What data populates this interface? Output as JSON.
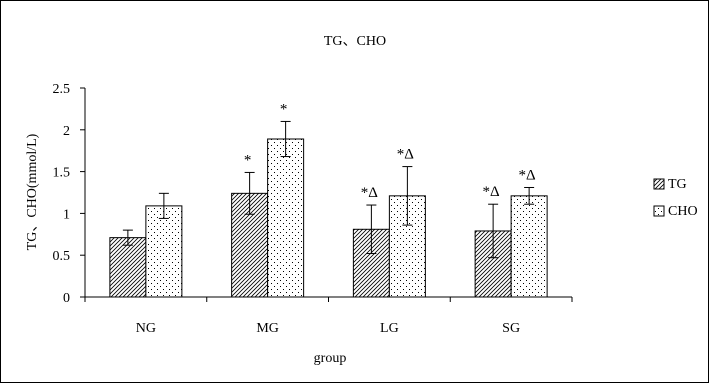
{
  "chart_data": {
    "type": "bar",
    "title": "TG、CHO",
    "xlabel": "group",
    "ylabel": "TG、CHO(mmol/L)",
    "categories": [
      "NG",
      "MG",
      "LG",
      "SG"
    ],
    "ylim": [
      0,
      2.5
    ],
    "yticks": [
      "0",
      "0.5",
      "1",
      "1.5",
      "2",
      "2.5"
    ],
    "grid": false,
    "legend_position": "right",
    "series": [
      {
        "name": "TG",
        "pattern": "diagonal-hatch",
        "values": [
          0.71,
          1.24,
          0.81,
          0.79
        ],
        "errors": [
          0.09,
          0.25,
          0.29,
          0.32
        ],
        "annotations": [
          "",
          "*",
          "*Δ",
          "*Δ"
        ]
      },
      {
        "name": "CHO",
        "pattern": "dots",
        "values": [
          1.09,
          1.89,
          1.21,
          1.21
        ],
        "errors": [
          0.15,
          0.21,
          0.35,
          0.1
        ],
        "annotations": [
          "",
          "*",
          "*Δ",
          "*Δ"
        ]
      }
    ],
    "colors": {
      "frame": "#000000",
      "bar_fill": "#ffffff",
      "hatch": "#000000"
    }
  }
}
